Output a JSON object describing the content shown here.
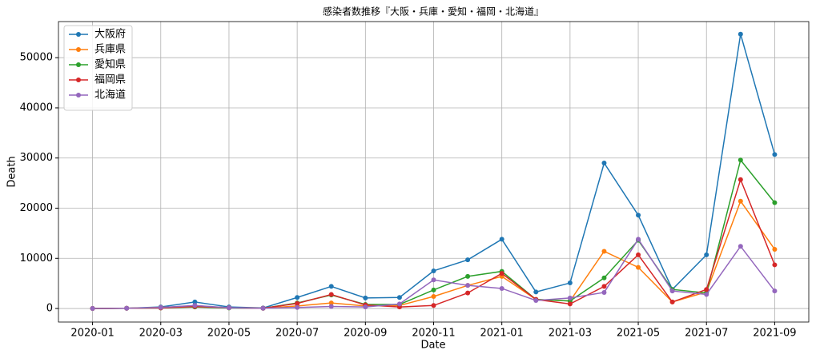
{
  "chart_data": {
    "type": "line",
    "title": "感染者数推移『大阪・兵庫・愛知・福岡・北海道』",
    "x_label": "Date",
    "y_label": "Death",
    "x": [
      "2020-01",
      "2020-02",
      "2020-03",
      "2020-04",
      "2020-05",
      "2020-06",
      "2020-07",
      "2020-08",
      "2020-09",
      "2020-10",
      "2020-11",
      "2020-12",
      "2021-01",
      "2021-02",
      "2021-03",
      "2021-04",
      "2021-05",
      "2021-06",
      "2021-07",
      "2021-08",
      "2021-09"
    ],
    "xlim": [
      "2019-12",
      "2021-10"
    ],
    "xticks": [
      "2020-01",
      "2020-03",
      "2020-05",
      "2020-07",
      "2020-09",
      "2020-11",
      "2021-01",
      "2021-03",
      "2021-05",
      "2021-07",
      "2021-09"
    ],
    "ylim": [
      -2700,
      57200
    ],
    "yticks": [
      0,
      10000,
      20000,
      30000,
      40000,
      50000
    ],
    "grid": true,
    "legend": "upper-left",
    "series": [
      {
        "name": "大阪府",
        "color": "#1f77b4",
        "values": [
          0,
          50,
          300,
          1300,
          300,
          100,
          2200,
          4400,
          2100,
          2200,
          7500,
          9700,
          13800,
          3300,
          5100,
          29000,
          18600,
          3800,
          10700,
          54700,
          30700
        ]
      },
      {
        "name": "兵庫県",
        "color": "#ff7f0e",
        "values": [
          0,
          50,
          200,
          500,
          150,
          50,
          500,
          1100,
          500,
          600,
          2400,
          4600,
          6400,
          1800,
          1500,
          11400,
          8200,
          1300,
          3300,
          21400,
          11800
        ]
      },
      {
        "name": "愛知県",
        "color": "#2ca02c",
        "values": [
          0,
          50,
          100,
          300,
          100,
          50,
          1100,
          2700,
          800,
          800,
          3700,
          6400,
          7400,
          1800,
          1500,
          6100,
          13600,
          3800,
          3100,
          29600,
          21100
        ]
      },
      {
        "name": "福岡県",
        "color": "#d62728",
        "values": [
          0,
          50,
          100,
          400,
          150,
          50,
          1000,
          2800,
          700,
          300,
          600,
          3100,
          7000,
          1800,
          900,
          4400,
          10700,
          1300,
          3800,
          25700,
          8700
        ]
      },
      {
        "name": "北海道",
        "color": "#9467bd",
        "values": [
          0,
          50,
          200,
          600,
          150,
          50,
          200,
          400,
          300,
          900,
          5700,
          4600,
          4000,
          1600,
          2100,
          3200,
          13800,
          3500,
          2800,
          12400,
          3500
        ]
      }
    ]
  }
}
